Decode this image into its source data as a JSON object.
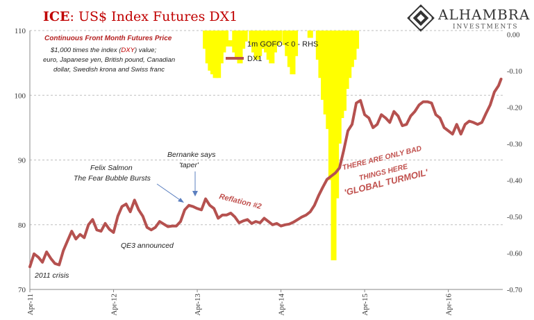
{
  "title": {
    "prefix": "ICE",
    "rest": ": US$ Index Futures DX1"
  },
  "logo": {
    "name": "ALHAMBRA",
    "sub": "INVESTMENTS"
  },
  "notes": {
    "heading": "Continuous  Front Month Futures Price",
    "line1_a": "$1,000 times the index (",
    "line1_b": "DXY",
    "line1_c": ") value;",
    "line2": "euro, Japanese yen, British pound, Canadian",
    "line3": "dollar, Swedish krona and Swiss franc"
  },
  "annotations": {
    "crisis": "2011 crisis",
    "salmon1": "Felix Salmon",
    "salmon2": "The Fear Bubble Bursts",
    "bernanke1": "Bernanke says",
    "bernanke2": "'taper'",
    "qe3": "QE3 announced",
    "reflation": "Reflation #2",
    "bad1": "THERE ARE ONLY BAD",
    "bad2": "THINGS HERE",
    "turmoil": "'GLOBAL TURMOIL'"
  },
  "colors": {
    "dx1": "#b5514f",
    "gofo": "#ffff00",
    "title_red": "#c00000",
    "grid": "#bdbdbd"
  },
  "chart_data": {
    "type": "line",
    "legend_position": "top-center",
    "x_ticks": [
      "Apr-11",
      "Apr-12",
      "Apr-13",
      "Apr-14",
      "Apr-15",
      "Apr-16"
    ],
    "y_left": {
      "ticks": [
        "70",
        "80",
        "90",
        "100",
        "110"
      ],
      "range": [
        70,
        110
      ]
    },
    "y_right": {
      "ticks": [
        "0.00",
        "-0.10",
        "-0.20",
        "-0.30",
        "-0.40",
        "-0.50",
        "-0.60",
        "-0.70"
      ],
      "range": [
        -0.7,
        0.01
      ]
    },
    "x_range": [
      2011.25,
      2016.9
    ],
    "series": [
      {
        "name": "DX1",
        "axis": "left",
        "x": [
          2011.25,
          2011.3,
          2011.35,
          2011.4,
          2011.45,
          2011.5,
          2011.55,
          2011.6,
          2011.65,
          2011.7,
          2011.75,
          2011.8,
          2011.85,
          2011.9,
          2011.95,
          2012.0,
          2012.05,
          2012.1,
          2012.15,
          2012.2,
          2012.25,
          2012.3,
          2012.35,
          2012.4,
          2012.45,
          2012.5,
          2012.55,
          2012.6,
          2012.65,
          2012.7,
          2012.75,
          2012.8,
          2012.85,
          2012.9,
          2012.95,
          2013.0,
          2013.05,
          2013.1,
          2013.15,
          2013.2,
          2013.25,
          2013.3,
          2013.35,
          2013.4,
          2013.45,
          2013.5,
          2013.55,
          2013.6,
          2013.65,
          2013.7,
          2013.75,
          2013.8,
          2013.85,
          2013.9,
          2013.95,
          2014.0,
          2014.05,
          2014.1,
          2014.15,
          2014.2,
          2014.25,
          2014.3,
          2014.35,
          2014.4,
          2014.45,
          2014.5,
          2014.55,
          2014.6,
          2014.65,
          2014.7,
          2014.75,
          2014.8,
          2014.85,
          2014.9,
          2014.95,
          2015.0,
          2015.05,
          2015.1,
          2015.15,
          2015.2,
          2015.25,
          2015.3,
          2015.35,
          2015.4,
          2015.45,
          2015.5,
          2015.55,
          2015.6,
          2015.65,
          2015.7,
          2015.75,
          2015.8,
          2015.85,
          2015.9,
          2015.95,
          2016.0,
          2016.05,
          2016.1,
          2016.15,
          2016.2,
          2016.25,
          2016.3,
          2016.35,
          2016.4,
          2016.45,
          2016.5,
          2016.55,
          2016.6,
          2016.65,
          2016.7,
          2016.75,
          2016.8,
          2016.85,
          2016.88
        ],
        "values": [
          73.5,
          75.5,
          75.0,
          74.2,
          75.8,
          74.8,
          74.0,
          73.8,
          76.0,
          77.5,
          79.0,
          77.8,
          78.5,
          78.0,
          80.0,
          80.8,
          79.2,
          79.0,
          80.2,
          79.3,
          78.8,
          81.3,
          82.8,
          83.2,
          82.0,
          83.8,
          82.3,
          81.3,
          79.6,
          79.2,
          79.6,
          80.5,
          80.1,
          79.7,
          79.8,
          79.8,
          80.5,
          82.3,
          83.0,
          82.8,
          82.5,
          82.3,
          84.0,
          83.0,
          82.5,
          81.0,
          81.5,
          81.5,
          81.8,
          81.2,
          80.3,
          80.6,
          80.8,
          80.2,
          80.5,
          80.3,
          81.0,
          80.5,
          80.0,
          80.2,
          79.8,
          80.0,
          80.1,
          80.4,
          80.8,
          81.2,
          81.5,
          82.0,
          83.0,
          84.5,
          85.8,
          87.0,
          87.5,
          88.0,
          88.8,
          91.5,
          94.5,
          95.5,
          98.8,
          99.2,
          97.0,
          96.5,
          95.0,
          95.5,
          97.0,
          96.5,
          95.8,
          97.5,
          96.8,
          95.3,
          95.5,
          96.8,
          97.5,
          98.5,
          99.0,
          99.0,
          98.8,
          97.0,
          96.5,
          95.0,
          94.5,
          94.0,
          95.5,
          94.0,
          95.5,
          96.0,
          95.8,
          95.5,
          95.8,
          97.2,
          98.5,
          100.5,
          101.5,
          102.5
        ]
      },
      {
        "name": "1m GOFO < 0 - RHS",
        "axis": "right",
        "type": "bar",
        "x": [
          2013.35,
          2013.38,
          2013.41,
          2013.44,
          2013.47,
          2013.5,
          2013.53,
          2013.56,
          2013.59,
          2013.7,
          2013.73,
          2013.76,
          2013.79,
          2013.82,
          2013.9,
          2013.93,
          2013.96,
          2013.99,
          2014.02,
          2014.05,
          2014.08,
          2014.11,
          2014.14,
          2014.17,
          2014.2,
          2014.23,
          2014.3,
          2014.33,
          2014.36,
          2014.39,
          2014.42,
          2014.6,
          2014.7,
          2014.73,
          2014.76,
          2014.79,
          2014.82,
          2014.85,
          2014.88,
          2014.91,
          2014.94,
          2014.97,
          2015.0,
          2015.03,
          2015.06,
          2015.09,
          2015.12,
          2015.15
        ],
        "values": [
          -0.04,
          -0.08,
          -0.1,
          -0.11,
          -0.12,
          -0.12,
          -0.08,
          -0.05,
          -0.02,
          -0.05,
          -0.07,
          -0.08,
          -0.04,
          -0.02,
          -0.03,
          -0.05,
          -0.07,
          -0.06,
          -0.04,
          -0.03,
          -0.05,
          -0.07,
          -0.08,
          -0.05,
          -0.03,
          -0.02,
          -0.03,
          -0.06,
          -0.09,
          -0.11,
          -0.06,
          -0.01,
          -0.07,
          -0.12,
          -0.18,
          -0.22,
          -0.26,
          -0.4,
          -0.62,
          -0.45,
          -0.3,
          -0.23,
          -0.21,
          -0.15,
          -0.12,
          -0.09,
          -0.07,
          -0.04
        ]
      }
    ]
  }
}
